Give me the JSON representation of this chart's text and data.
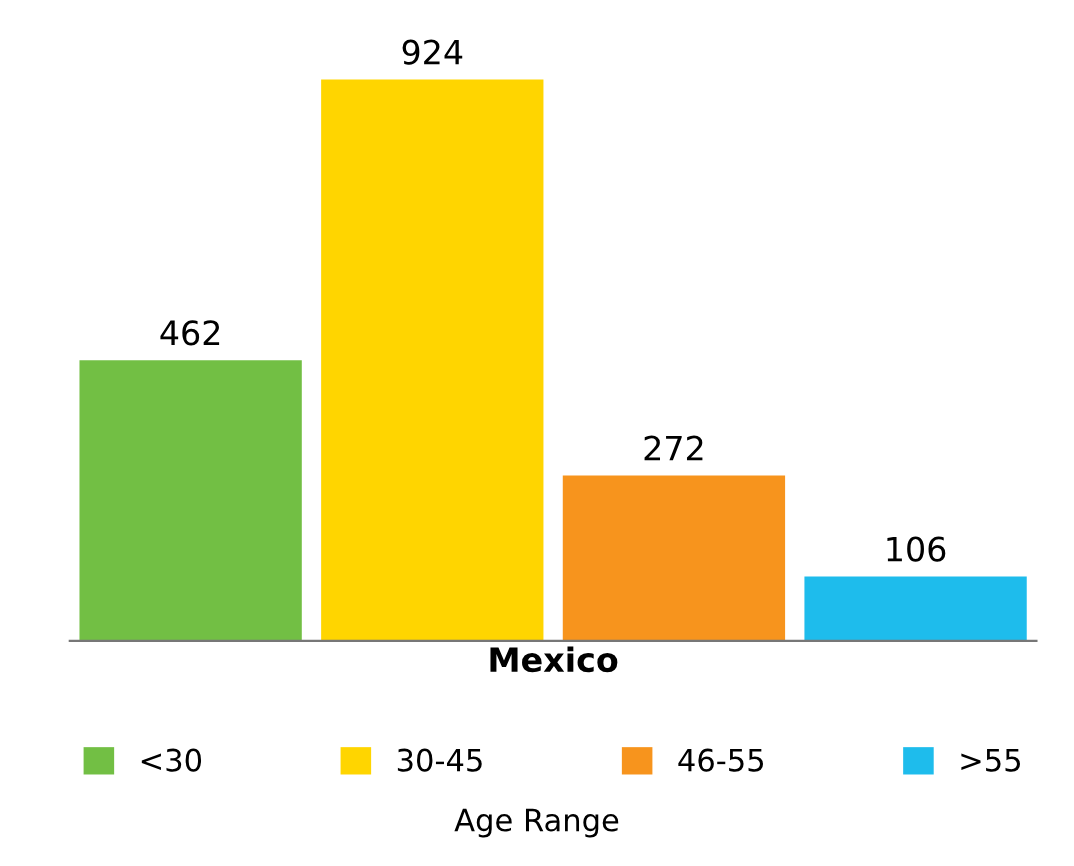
{
  "chart_data": {
    "type": "bar",
    "categories": [
      null,
      null,
      null,
      null
    ],
    "series": [
      {
        "name": "<30",
        "color": "#72bf44",
        "values": [
          462,
          null,
          null,
          null
        ]
      },
      {
        "name": "30-45",
        "color": "#ffd500",
        "values": [
          null,
          924,
          null,
          null
        ]
      },
      {
        "name": "46-55",
        "color": "#f7941d",
        "values": [
          null,
          null,
          272,
          null
        ]
      },
      {
        "name": ">55",
        "color": "#1ebcec",
        "values": [
          null,
          null,
          null,
          106
        ]
      }
    ],
    "xlabel": "Mexico",
    "legend_title": "Age Range",
    "legend": "bottom",
    "data_labels": true,
    "stacked": true,
    "grid": false
  }
}
